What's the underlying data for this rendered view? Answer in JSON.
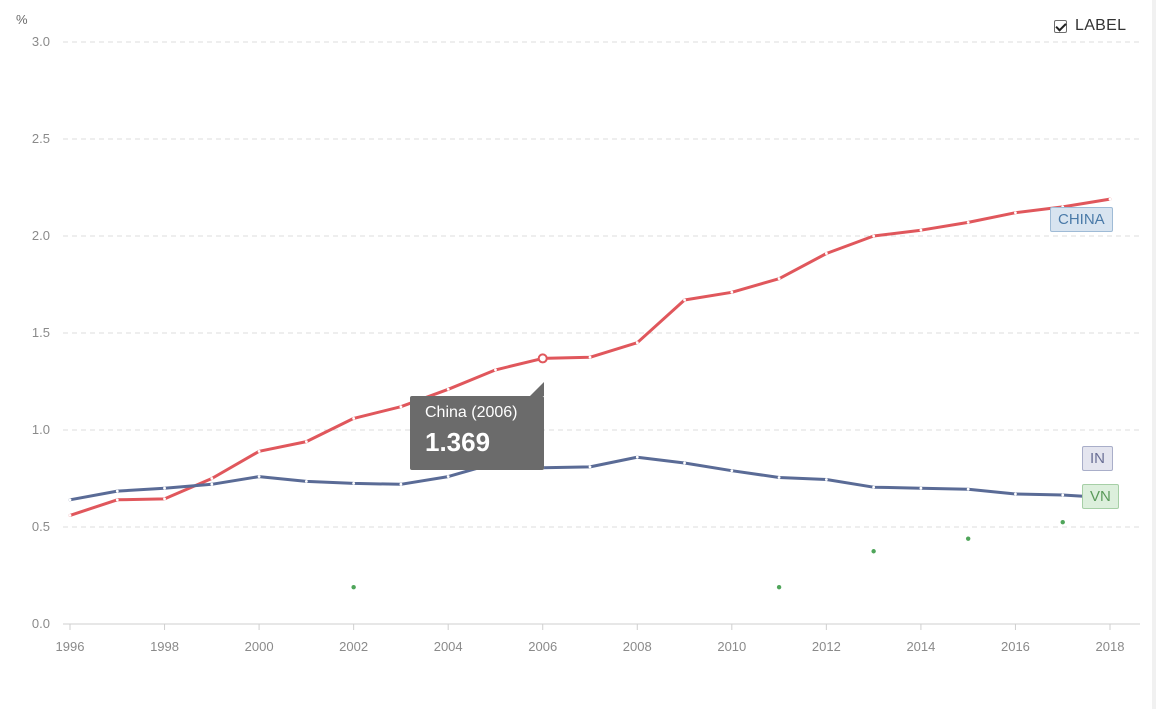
{
  "ui": {
    "label_toggle": {
      "text": "LABEL",
      "checked": true
    },
    "series_tags": {
      "china": "CHINA",
      "in": "IN",
      "vn": "VN"
    },
    "tooltip": {
      "title": "China (2006)",
      "value": "1.369"
    }
  },
  "colors": {
    "china": "#e0575c",
    "in": "#5a6b96",
    "vn": "#4fa55a"
  },
  "chart_data": {
    "type": "line",
    "unit_label": "%",
    "ylim": [
      0,
      3.0
    ],
    "y_ticks": [
      "0.0",
      "0.5",
      "1.0",
      "1.5",
      "2.0",
      "2.5",
      "3.0"
    ],
    "x_ticks": [
      "1996",
      "1998",
      "2000",
      "2002",
      "2004",
      "2006",
      "2008",
      "2010",
      "2012",
      "2014",
      "2016",
      "2018"
    ],
    "grid": true,
    "series": [
      {
        "name": "CHINA",
        "color_key": "china",
        "x": [
          1996,
          1997,
          1998,
          1999,
          2000,
          2001,
          2002,
          2003,
          2004,
          2005,
          2006,
          2007,
          2008,
          2009,
          2010,
          2011,
          2012,
          2013,
          2014,
          2015,
          2016,
          2017,
          2018
        ],
        "values": [
          0.56,
          0.64,
          0.645,
          0.75,
          0.89,
          0.94,
          1.06,
          1.12,
          1.21,
          1.31,
          1.369,
          1.375,
          1.45,
          1.67,
          1.71,
          1.78,
          1.91,
          2.0,
          2.03,
          2.07,
          2.12,
          2.15,
          2.19
        ],
        "highlight": 2006
      },
      {
        "name": "IN",
        "color_key": "in",
        "x": [
          1996,
          1997,
          1998,
          1999,
          2000,
          2001,
          2002,
          2003,
          2004,
          2005,
          2006,
          2007,
          2008,
          2009,
          2010,
          2011,
          2012,
          2013,
          2014,
          2015,
          2016,
          2017,
          2018
        ],
        "values": [
          0.64,
          0.685,
          0.7,
          0.72,
          0.76,
          0.735,
          0.725,
          0.72,
          0.76,
          0.83,
          0.805,
          0.81,
          0.86,
          0.83,
          0.79,
          0.755,
          0.745,
          0.705,
          0.7,
          0.695,
          0.67,
          0.665,
          0.65
        ]
      },
      {
        "name": "VN",
        "color_key": "vn",
        "x": [
          2002,
          2011,
          2013,
          2015,
          2017
        ],
        "values": [
          0.19,
          0.19,
          0.375,
          0.44,
          0.525
        ],
        "markers_only": true
      }
    ]
  }
}
